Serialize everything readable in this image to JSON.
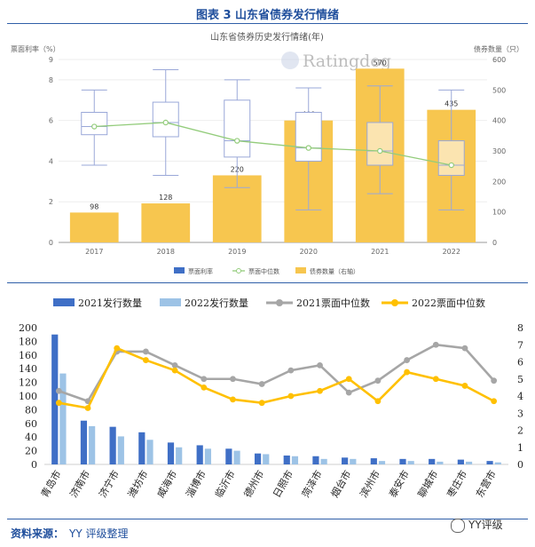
{
  "figure_title": "图表 3   山东省债券发行情绪",
  "source_label": "资料来源：",
  "source_value": "YY 评级整理",
  "wechat_label": "YY评级",
  "colors": {
    "title_blue": "#1f4e9c",
    "bar_yellow": "#f7c64f",
    "box_fill": "#fbe4b0",
    "box_stroke": "#9aa8d8",
    "median_green": "#93cc7b",
    "series_2021": "#3f6fc6",
    "series_2022": "#9dc3e6",
    "median_2021": "#a6a6a6",
    "median_2022": "#ffc000"
  },
  "chart_data": [
    {
      "type": "bar+box",
      "title": "山东省债券历史发行情绪(年)",
      "watermark": "Ratingdog",
      "ylabel_left": "票面利率（%）",
      "ylabel_right": "债券数量（只）",
      "ylim_left": [
        0,
        9
      ],
      "ylim_right": [
        0,
        600
      ],
      "left_ticks": [
        "0",
        "2",
        "4",
        "6",
        "8",
        "9"
      ],
      "right_ticks": [
        "0",
        "100",
        "200",
        "300",
        "400",
        "500",
        "600"
      ],
      "categories": [
        "2017",
        "2018",
        "2019",
        "2020",
        "2021",
        "2022"
      ],
      "bond_counts": [
        98,
        128,
        220,
        400,
        570,
        435
      ],
      "box": [
        {
          "min": 3.8,
          "q1": 5.3,
          "median": 5.7,
          "q3": 6.4,
          "max": 7.5
        },
        {
          "min": 3.3,
          "q1": 5.2,
          "median": 5.9,
          "q3": 6.9,
          "max": 8.5
        },
        {
          "min": 2.7,
          "q1": 4.2,
          "median": 5.0,
          "q3": 7.0,
          "max": 8.0
        },
        {
          "min": 1.6,
          "q1": 4.0,
          "median": 4.65,
          "q3": 6.4,
          "max": 7.6
        },
        {
          "min": 2.4,
          "q1": 3.8,
          "median": 4.5,
          "q3": 5.9,
          "max": 7.7
        },
        {
          "min": 1.6,
          "q1": 3.3,
          "median": 3.8,
          "q3": 5.0,
          "max": 7.5
        }
      ],
      "median_line": [
        5.7,
        5.9,
        5.0,
        4.65,
        4.5,
        3.8
      ],
      "legend": [
        "票面利率",
        "票面中位数",
        "债券数量（右轴）"
      ]
    },
    {
      "type": "bar+line",
      "ylim_left": [
        0,
        200
      ],
      "ylim_right": [
        0,
        8
      ],
      "left_ticks": [
        "0",
        "20",
        "40",
        "60",
        "80",
        "100",
        "120",
        "140",
        "160",
        "180",
        "200"
      ],
      "right_ticks": [
        "0",
        "1",
        "2",
        "3",
        "4",
        "5",
        "6",
        "7",
        "8"
      ],
      "categories": [
        "青岛市",
        "济南市",
        "济宁市",
        "潍坊市",
        "威海市",
        "淄博市",
        "临沂市",
        "德州市",
        "日照市",
        "菏泽市",
        "烟台市",
        "滨州市",
        "泰安市",
        "聊城市",
        "枣庄市",
        "东营市"
      ],
      "series": [
        {
          "name": "2021发行数量",
          "kind": "bar",
          "axis": "left",
          "values": [
            190,
            64,
            55,
            47,
            32,
            28,
            23,
            16,
            13,
            12,
            10,
            9,
            8,
            8,
            7,
            5
          ]
        },
        {
          "name": "2022发行数量",
          "kind": "bar",
          "axis": "left",
          "values": [
            133,
            56,
            41,
            36,
            25,
            23,
            20,
            15,
            12,
            8,
            8,
            5,
            5,
            4,
            4,
            3
          ]
        },
        {
          "name": "2021票面中位数",
          "kind": "line",
          "axis": "right",
          "values": [
            4.3,
            3.7,
            6.6,
            6.6,
            5.8,
            5.0,
            5.0,
            4.7,
            5.5,
            5.8,
            4.2,
            4.9,
            6.1,
            7.0,
            6.8,
            4.9
          ]
        },
        {
          "name": "2022票面中位数",
          "kind": "line",
          "axis": "right",
          "values": [
            3.6,
            3.3,
            6.8,
            6.1,
            5.5,
            4.5,
            3.8,
            3.6,
            4.0,
            4.3,
            5.0,
            3.7,
            5.4,
            5.0,
            4.6,
            3.7
          ]
        }
      ],
      "legend": [
        "2021发行数量",
        "2022发行数量",
        "2021票面中位数",
        "2022票面中位数"
      ]
    }
  ]
}
